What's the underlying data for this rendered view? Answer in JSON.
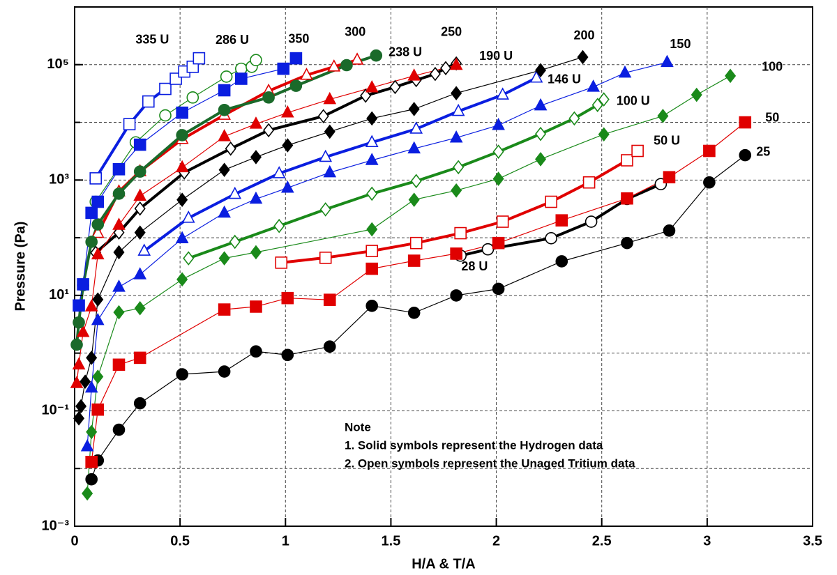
{
  "chart_data": {
    "type": "line",
    "log_y": true,
    "grid": true,
    "xlabel": "H/A & T/A",
    "ylabel": "Pressure (Pa)",
    "xlim": [
      0,
      3.5
    ],
    "xticks": [
      0,
      0.5,
      1,
      1.5,
      2,
      2.5,
      3,
      3.5
    ],
    "ylim": [
      0.001,
      1000000
    ],
    "yticks": [
      {
        "value": 0.001,
        "label": "10⁻³"
      },
      {
        "value": 0.1,
        "label": "10⁻¹"
      },
      {
        "value": 10,
        "label": "10¹"
      },
      {
        "value": 1000,
        "label": "10³"
      },
      {
        "value": 100000,
        "label": "10⁵"
      }
    ],
    "annotations": [
      "Note",
      "1. Solid symbols represent the Hydrogen data",
      "2. Open symbols represent the Unaged Tritium data"
    ],
    "series": [
      {
        "name": "25",
        "color": "#000000",
        "marker": "circle",
        "filled": true,
        "line_width": 1.2,
        "x": [
          0.08,
          0.11,
          0.21,
          0.31,
          0.51,
          0.71,
          0.86,
          1.01,
          1.21,
          1.41,
          1.61,
          1.81,
          2.01,
          2.31,
          2.62,
          2.82,
          3.01,
          3.18
        ],
        "values": [
          0.0065,
          0.0138,
          0.047,
          0.135,
          0.43,
          0.48,
          1.07,
          0.93,
          1.3,
          6.6,
          5.0,
          10,
          13,
          39,
          81,
          133,
          910,
          2700
        ]
      },
      {
        "name": "28 U",
        "color": "#000000",
        "marker": "circle",
        "filled": false,
        "line_width": 4,
        "x": [
          1.83,
          1.96,
          2.26,
          2.45,
          2.62,
          2.78
        ],
        "values": [
          49,
          63,
          98,
          190,
          470,
          850
        ]
      },
      {
        "name": "50",
        "color": "#e00000",
        "marker": "square",
        "filled": true,
        "line_width": 1.2,
        "x": [
          0.08,
          0.11,
          0.21,
          0.31,
          0.71,
          0.86,
          1.01,
          1.21,
          1.41,
          1.61,
          1.81,
          2.01,
          2.31,
          2.62,
          2.82,
          3.01,
          3.18
        ],
        "values": [
          0.013,
          0.105,
          0.63,
          0.83,
          5.7,
          6.4,
          9,
          8.4,
          29,
          40,
          53,
          81,
          200,
          480,
          1120,
          3200,
          10000
        ]
      },
      {
        "name": "50 U",
        "color": "#e00000",
        "marker": "square",
        "filled": false,
        "line_width": 4,
        "x": [
          0.98,
          1.19,
          1.41,
          1.62,
          1.83,
          2.03,
          2.26,
          2.44,
          2.62,
          2.67
        ],
        "values": [
          37,
          45,
          59,
          81,
          120,
          190,
          420,
          910,
          2200,
          3200
        ]
      },
      {
        "name": "100",
        "color": "#1a8a1a",
        "marker": "diamond",
        "filled": true,
        "line_width": 1.2,
        "x": [
          0.06,
          0.08,
          0.11,
          0.21,
          0.31,
          0.51,
          0.71,
          0.86,
          1.41,
          1.61,
          1.81,
          2.01,
          2.21,
          2.51,
          2.79,
          2.95,
          3.11
        ],
        "values": [
          0.0037,
          0.043,
          0.39,
          5.1,
          6.0,
          19,
          44,
          56,
          140,
          455,
          660,
          1050,
          2300,
          6200,
          12900,
          30000,
          64000
        ]
      },
      {
        "name": "100 U",
        "color": "#1a8a1a",
        "marker": "diamond",
        "filled": false,
        "line_width": 4,
        "x": [
          0.54,
          0.76,
          0.97,
          1.19,
          1.41,
          1.62,
          1.82,
          2.01,
          2.21,
          2.37,
          2.48,
          2.51
        ],
        "values": [
          44,
          85,
          160,
          310,
          580,
          960,
          1670,
          3100,
          6300,
          11700,
          20000,
          25000
        ]
      },
      {
        "name": "150",
        "color": "#0a1ee0",
        "marker": "triangle",
        "filled": true,
        "line_width": 1.2,
        "x": [
          0.06,
          0.08,
          0.11,
          0.21,
          0.31,
          0.51,
          0.71,
          0.86,
          1.01,
          1.21,
          1.41,
          1.61,
          1.81,
          2.01,
          2.21,
          2.46,
          2.61,
          2.81
        ],
        "values": [
          0.024,
          0.25,
          3.7,
          14,
          23,
          97,
          270,
          470,
          730,
          1350,
          2200,
          3500,
          5400,
          8900,
          19500,
          41000,
          72000,
          110000
        ]
      },
      {
        "name": "146 U",
        "color": "#0a1ee0",
        "marker": "triangle",
        "filled": false,
        "line_width": 4,
        "x": [
          0.33,
          0.54,
          0.76,
          0.97,
          1.19,
          1.41,
          1.62,
          1.82,
          2.03,
          2.19
        ],
        "values": [
          59,
          220,
          570,
          1300,
          2500,
          4500,
          7700,
          15600,
          30000,
          59000
        ]
      },
      {
        "name": "200",
        "color": "#000000",
        "marker": "diamond",
        "filled": true,
        "line_width": 1.2,
        "x": [
          0.02,
          0.03,
          0.05,
          0.08,
          0.11,
          0.21,
          0.31,
          0.51,
          0.71,
          0.86,
          1.01,
          1.21,
          1.41,
          1.61,
          1.81,
          2.21,
          2.41
        ],
        "values": [
          0.074,
          0.12,
          0.32,
          0.83,
          8.5,
          56,
          123,
          455,
          1500,
          2500,
          4000,
          6900,
          11700,
          17000,
          32000,
          80000,
          135000
        ]
      },
      {
        "name": "190 U",
        "color": "#000000",
        "marker": "diamond",
        "filled": false,
        "line_width": 4,
        "x": [
          0.1,
          0.21,
          0.31,
          0.52,
          0.74,
          0.92,
          1.18,
          1.38,
          1.52,
          1.62,
          1.71,
          1.76,
          1.81
        ],
        "values": [
          55,
          123,
          320,
          1350,
          3500,
          7300,
          12800,
          29000,
          41000,
          54000,
          69000,
          87000,
          105000
        ]
      },
      {
        "name": "250",
        "color": "#e00000",
        "marker": "triangle",
        "filled": true,
        "line_width": 1.2,
        "x": [
          0.01,
          0.02,
          0.04,
          0.08,
          0.11,
          0.21,
          0.31,
          0.51,
          0.71,
          0.86,
          1.01,
          1.21,
          1.41,
          1.61,
          1.81
        ],
        "values": [
          0.3,
          0.63,
          2.3,
          6.4,
          51,
          166,
          530,
          1650,
          5700,
          9400,
          14700,
          25000,
          40000,
          64000,
          98000
        ]
      },
      {
        "name": "238 U",
        "color": "#e00000",
        "marker": "triangle",
        "filled": false,
        "line_width": 4,
        "x": [
          0.11,
          0.21,
          0.31,
          0.51,
          0.71,
          0.92,
          1.1,
          1.23,
          1.34
        ],
        "values": [
          120,
          630,
          1410,
          5100,
          13400,
          35000,
          66000,
          92000,
          121000
        ]
      },
      {
        "name": "300",
        "color": "#1a6a2a",
        "marker": "circle",
        "filled": true,
        "line_width": 4,
        "x": [
          0.01,
          0.02,
          0.04,
          0.08,
          0.11,
          0.21,
          0.31,
          0.51,
          0.71,
          0.92,
          1.05,
          1.29,
          1.43
        ],
        "values": [
          1.4,
          3.4,
          15,
          85,
          170,
          580,
          1400,
          6000,
          16400,
          27000,
          43000,
          98000,
          144000
        ]
      },
      {
        "name": "286 U",
        "color": "#1a8a1a",
        "marker": "circle",
        "filled": false,
        "line_width": 1.2,
        "x": [
          0.1,
          0.29,
          0.43,
          0.56,
          0.72,
          0.79,
          0.84,
          0.86
        ],
        "values": [
          420,
          4500,
          13200,
          27000,
          62000,
          85000,
          92000,
          120000
        ]
      },
      {
        "name": "350",
        "color": "#0a1ee0",
        "marker": "square",
        "filled": true,
        "line_width": 1.2,
        "x": [
          0.02,
          0.04,
          0.08,
          0.11,
          0.21,
          0.31,
          0.51,
          0.71,
          0.79,
          0.99,
          1.05
        ],
        "values": [
          6.7,
          15.6,
          270,
          420,
          1540,
          4100,
          14700,
          36000,
          57000,
          85000,
          129000
        ]
      },
      {
        "name": "335 U",
        "color": "#0a1ee0",
        "marker": "square",
        "filled": false,
        "line_width": 4,
        "x": [
          0.1,
          0.26,
          0.35,
          0.43,
          0.48,
          0.52,
          0.56,
          0.59
        ],
        "values": [
          1070,
          9300,
          23000,
          38000,
          57000,
          76000,
          92000,
          129000
        ]
      }
    ]
  }
}
